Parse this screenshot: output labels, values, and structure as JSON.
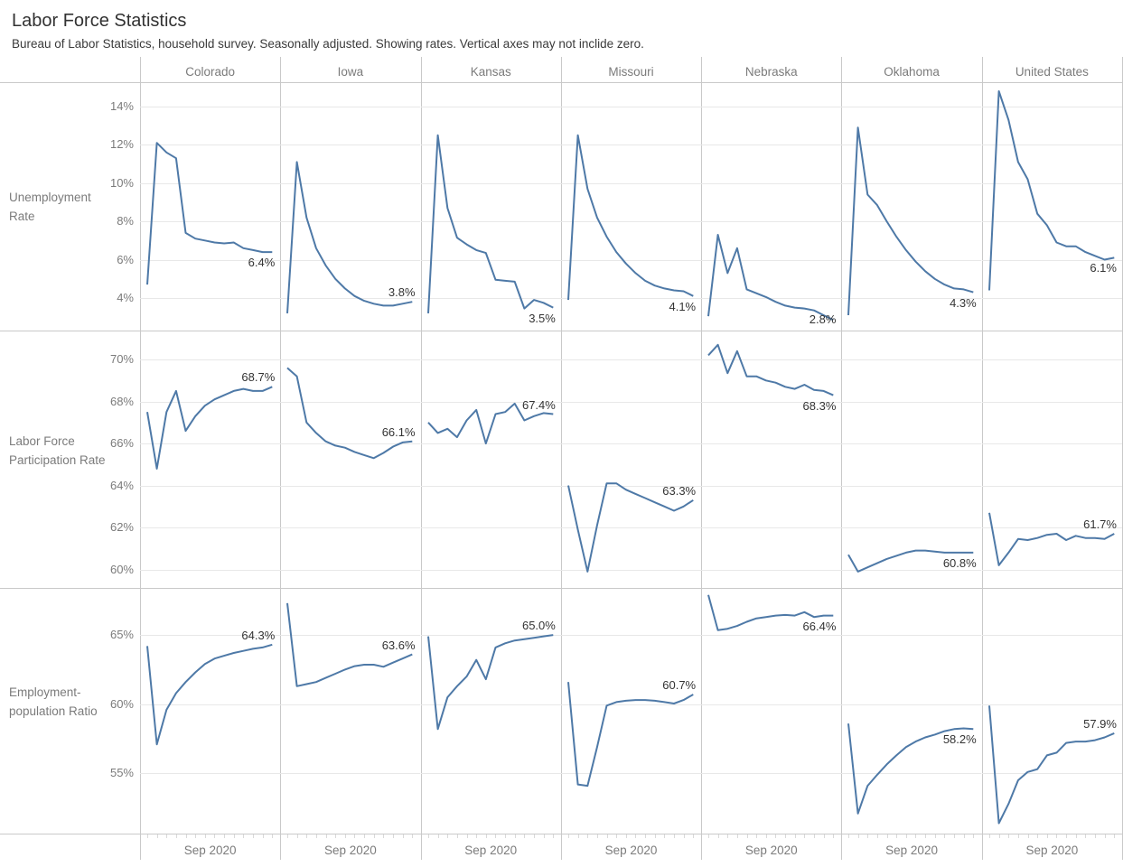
{
  "title": "Labor Force Statistics",
  "subtitle": "Bureau of Labor Statistics, household survey. Seasonally adjusted. Showing rates. Vertical axes may not inclide zero.",
  "columns": [
    "Colorado",
    "Iowa",
    "Kansas",
    "Missouri",
    "Nebraska",
    "Oklahoma",
    "United States"
  ],
  "x_axis": {
    "tick_label": "Sep 2020",
    "n_points": 14
  },
  "colors": {
    "line": "#4e79a7",
    "grid": "#e8e8e8",
    "border": "#c9c9c9",
    "muted_text": "#7b7b7b",
    "value_text": "#333333"
  },
  "chart_data": {
    "type": "line",
    "layout": "small-multiples",
    "title": "Labor Force Statistics",
    "x_tick_label_per_panel": "Sep 2020",
    "columns": [
      "Colorado",
      "Iowa",
      "Kansas",
      "Missouri",
      "Nebraska",
      "Oklahoma",
      "United States"
    ],
    "rows": [
      {
        "label": "Unemployment Rate",
        "ticks": [
          4,
          6,
          8,
          10,
          12,
          14
        ],
        "ylim": [
          2.3,
          15.27
        ],
        "grid": true,
        "series": [
          {
            "name": "Colorado",
            "values": [
              4.7,
              12.1,
              11.6,
              11.3,
              7.4,
              7.1,
              7.0,
              6.9,
              6.85,
              6.9,
              6.6,
              6.5,
              6.4,
              6.4
            ],
            "end_label": "6.4%",
            "end_label_side": "below"
          },
          {
            "name": "Iowa",
            "values": [
              3.2,
              11.1,
              8.2,
              6.6,
              5.7,
              5.0,
              4.5,
              4.1,
              3.85,
              3.7,
              3.6,
              3.6,
              3.7,
              3.8
            ],
            "end_label": "3.8%",
            "end_label_side": "above"
          },
          {
            "name": "Kansas",
            "values": [
              3.2,
              12.5,
              8.7,
              7.15,
              6.8,
              6.5,
              6.35,
              4.95,
              4.9,
              4.85,
              3.45,
              3.9,
              3.75,
              3.5
            ],
            "end_label": "3.5%",
            "end_label_side": "below"
          },
          {
            "name": "Missouri",
            "values": [
              3.9,
              12.5,
              9.7,
              8.2,
              7.2,
              6.4,
              5.8,
              5.3,
              4.9,
              4.65,
              4.5,
              4.4,
              4.35,
              4.1
            ],
            "end_label": "4.1%",
            "end_label_side": "below"
          },
          {
            "name": "Nebraska",
            "values": [
              3.05,
              7.3,
              5.3,
              6.6,
              4.45,
              4.25,
              4.05,
              3.8,
              3.6,
              3.5,
              3.45,
              3.35,
              3.1,
              2.85
            ],
            "end_label": "2.8%",
            "end_label_side": "center"
          },
          {
            "name": "Oklahoma",
            "values": [
              3.1,
              12.9,
              9.4,
              8.85,
              8.0,
              7.2,
              6.5,
              5.9,
              5.4,
              5.0,
              4.7,
              4.5,
              4.45,
              4.3
            ],
            "end_label": "4.3%",
            "end_label_side": "below"
          },
          {
            "name": "United States",
            "values": [
              4.4,
              14.8,
              13.3,
              11.1,
              10.2,
              8.4,
              7.8,
              6.9,
              6.7,
              6.7,
              6.4,
              6.2,
              6.0,
              6.1
            ],
            "end_label": "6.1%",
            "end_label_side": "below"
          }
        ]
      },
      {
        "label": "Labor Force Participation Rate",
        "ticks": [
          60,
          62,
          64,
          66,
          68,
          70
        ],
        "ylim": [
          59.12,
          71.38
        ],
        "grid": true,
        "series": [
          {
            "name": "Colorado",
            "values": [
              67.5,
              64.8,
              67.5,
              68.5,
              66.6,
              67.3,
              67.8,
              68.1,
              68.3,
              68.5,
              68.6,
              68.5,
              68.5,
              68.7
            ],
            "end_label": "68.7%",
            "end_label_side": "above"
          },
          {
            "name": "Iowa",
            "values": [
              69.6,
              69.2,
              67.0,
              66.5,
              66.1,
              65.9,
              65.8,
              65.6,
              65.45,
              65.3,
              65.55,
              65.85,
              66.05,
              66.1
            ],
            "end_label": "66.1%",
            "end_label_side": "above"
          },
          {
            "name": "Kansas",
            "values": [
              67.0,
              66.5,
              66.7,
              66.3,
              67.1,
              67.6,
              66.0,
              67.4,
              67.5,
              67.9,
              67.1,
              67.3,
              67.45,
              67.4
            ],
            "end_label": "67.4%",
            "end_label_side": "above"
          },
          {
            "name": "Missouri",
            "values": [
              64.0,
              61.9,
              59.9,
              62.1,
              64.1,
              64.1,
              63.8,
              63.6,
              63.4,
              63.2,
              63.0,
              62.8,
              63.0,
              63.3
            ],
            "end_label": "63.3%",
            "end_label_side": "above"
          },
          {
            "name": "Nebraska",
            "values": [
              70.2,
              70.7,
              69.35,
              70.4,
              69.2,
              69.2,
              69.0,
              68.9,
              68.7,
              68.6,
              68.8,
              68.55,
              68.5,
              68.3
            ],
            "end_label": "68.3%",
            "end_label_side": "below"
          },
          {
            "name": "Oklahoma",
            "values": [
              60.7,
              59.9,
              60.1,
              60.3,
              60.5,
              60.65,
              60.8,
              60.9,
              60.9,
              60.85,
              60.8,
              60.8,
              60.8,
              60.8
            ],
            "end_label": "60.8%",
            "end_label_side": "below"
          },
          {
            "name": "United States",
            "values": [
              62.7,
              60.2,
              60.8,
              61.45,
              61.4,
              61.5,
              61.65,
              61.7,
              61.4,
              61.6,
              61.5,
              61.5,
              61.45,
              61.7
            ],
            "end_label": "61.7%",
            "end_label_side": "above"
          }
        ]
      },
      {
        "label": "Employment-population Ratio",
        "ticks": [
          55,
          60,
          65
        ],
        "ylim": [
          50.65,
          68.4
        ],
        "grid": true,
        "series": [
          {
            "name": "Colorado",
            "values": [
              64.2,
              57.1,
              59.6,
              60.8,
              61.6,
              62.3,
              62.9,
              63.3,
              63.5,
              63.7,
              63.85,
              64.0,
              64.1,
              64.3
            ],
            "end_label": "64.3%",
            "end_label_side": "above"
          },
          {
            "name": "Iowa",
            "values": [
              67.3,
              61.3,
              61.45,
              61.6,
              61.9,
              62.2,
              62.5,
              62.75,
              62.85,
              62.85,
              62.7,
              63.0,
              63.3,
              63.6
            ],
            "end_label": "63.6%",
            "end_label_side": "above"
          },
          {
            "name": "Kansas",
            "values": [
              64.9,
              58.2,
              60.5,
              61.3,
              62.0,
              63.2,
              61.8,
              64.1,
              64.4,
              64.6,
              64.7,
              64.8,
              64.9,
              65.0
            ],
            "end_label": "65.0%",
            "end_label_side": "above"
          },
          {
            "name": "Missouri",
            "values": [
              61.6,
              54.2,
              54.1,
              56.9,
              59.9,
              60.15,
              60.25,
              60.3,
              60.3,
              60.25,
              60.15,
              60.05,
              60.3,
              60.7
            ],
            "end_label": "60.7%",
            "end_label_side": "above"
          },
          {
            "name": "Nebraska",
            "values": [
              67.9,
              65.35,
              65.45,
              65.65,
              65.95,
              66.2,
              66.3,
              66.4,
              66.45,
              66.4,
              66.65,
              66.3,
              66.4,
              66.4
            ],
            "end_label": "66.4%",
            "end_label_side": "below"
          },
          {
            "name": "Oklahoma",
            "values": [
              58.6,
              52.1,
              54.1,
              54.9,
              55.65,
              56.3,
              56.9,
              57.3,
              57.6,
              57.8,
              58.05,
              58.2,
              58.25,
              58.2
            ],
            "end_label": "58.2%",
            "end_label_side": "below"
          },
          {
            "name": "United States",
            "values": [
              59.9,
              51.4,
              52.8,
              54.5,
              55.1,
              55.3,
              56.3,
              56.5,
              57.2,
              57.3,
              57.3,
              57.4,
              57.6,
              57.9
            ],
            "end_label": "57.9%",
            "end_label_side": "above"
          }
        ]
      }
    ]
  }
}
